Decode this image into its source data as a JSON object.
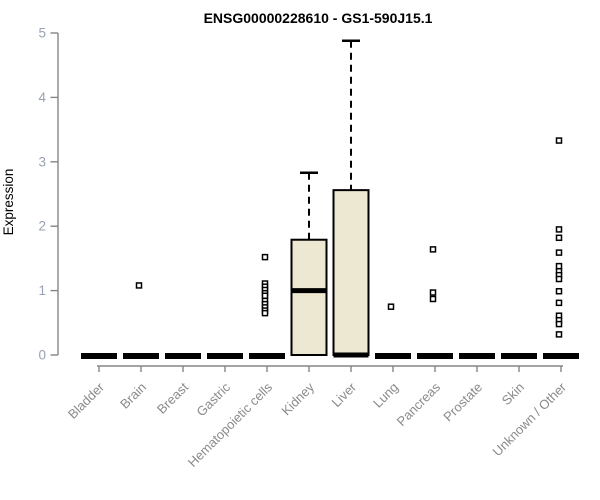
{
  "title": "ENSG00000228610 - GS1-590J15.1",
  "ylabel": "Expression",
  "chart_data": {
    "type": "box",
    "title": "ENSG00000228610 - GS1-590J15.1",
    "xlabel": "",
    "ylabel": "Expression",
    "ylim": [
      0,
      5
    ],
    "yticks": [
      0,
      1,
      2,
      3,
      4,
      5
    ],
    "grid": false,
    "legend": false,
    "categories": [
      "Bladder",
      "Brain",
      "Breast",
      "Gastric",
      "Hematopoietic cells",
      "Kidney",
      "Liver",
      "Lung",
      "Pancreas",
      "Prostate",
      "Skin",
      "Unknown / Other"
    ],
    "series": [
      {
        "category": "Bladder",
        "min": 0,
        "q1": 0,
        "median": 0,
        "q3": 0,
        "max": 0,
        "outliers": []
      },
      {
        "category": "Brain",
        "min": 0,
        "q1": 0,
        "median": 0,
        "q3": 0,
        "max": 0,
        "outliers": [
          1.08
        ]
      },
      {
        "category": "Breast",
        "min": 0,
        "q1": 0,
        "median": 0,
        "q3": 0,
        "max": 0,
        "outliers": []
      },
      {
        "category": "Gastric",
        "min": 0,
        "q1": 0,
        "median": 0,
        "q3": 0,
        "max": 0,
        "outliers": []
      },
      {
        "category": "Hematopoietic cells",
        "min": 0,
        "q1": 0,
        "median": 0,
        "q3": 0,
        "max": 0,
        "outliers": [
          1.52,
          1.11,
          1.06,
          1.01,
          0.96,
          0.92,
          0.84,
          0.79,
          0.74,
          0.69,
          0.65
        ]
      },
      {
        "category": "Kidney",
        "min": 0,
        "q1": 0,
        "median": 1.0,
        "q3": 1.79,
        "max": 2.83,
        "outliers": []
      },
      {
        "category": "Liver",
        "min": 0,
        "q1": 0,
        "median": 0,
        "q3": 2.56,
        "max": 4.88,
        "outliers": []
      },
      {
        "category": "Lung",
        "min": 0,
        "q1": 0,
        "median": 0,
        "q3": 0,
        "max": 0,
        "outliers": [
          0.75
        ]
      },
      {
        "category": "Pancreas",
        "min": 0,
        "q1": 0,
        "median": 0,
        "q3": 0,
        "max": 0,
        "outliers": [
          1.64,
          0.97,
          0.87
        ]
      },
      {
        "category": "Prostate",
        "min": 0,
        "q1": 0,
        "median": 0,
        "q3": 0,
        "max": 0,
        "outliers": []
      },
      {
        "category": "Skin",
        "min": 0,
        "q1": 0,
        "median": 0,
        "q3": 0,
        "max": 0,
        "outliers": []
      },
      {
        "category": "Unknown / Other",
        "min": 0,
        "q1": 0,
        "median": 0,
        "q3": 0,
        "max": 0,
        "outliers": [
          3.33,
          1.95,
          1.82,
          1.59,
          1.38,
          1.3,
          1.24,
          1.18,
          0.99,
          0.81,
          0.61,
          0.54,
          0.48,
          0.32
        ]
      }
    ],
    "colors": {
      "box_fill": "#EDE8D1",
      "box_stroke": "#000000",
      "median": "#000000",
      "whisker": "#000000",
      "outlier_fill": "#FFFFFF",
      "outlier_stroke": "#000000",
      "axis": "#868686",
      "ytick_label": "#98A1B3",
      "xtick_label": "#8A8A8A",
      "title": "#000000"
    }
  }
}
